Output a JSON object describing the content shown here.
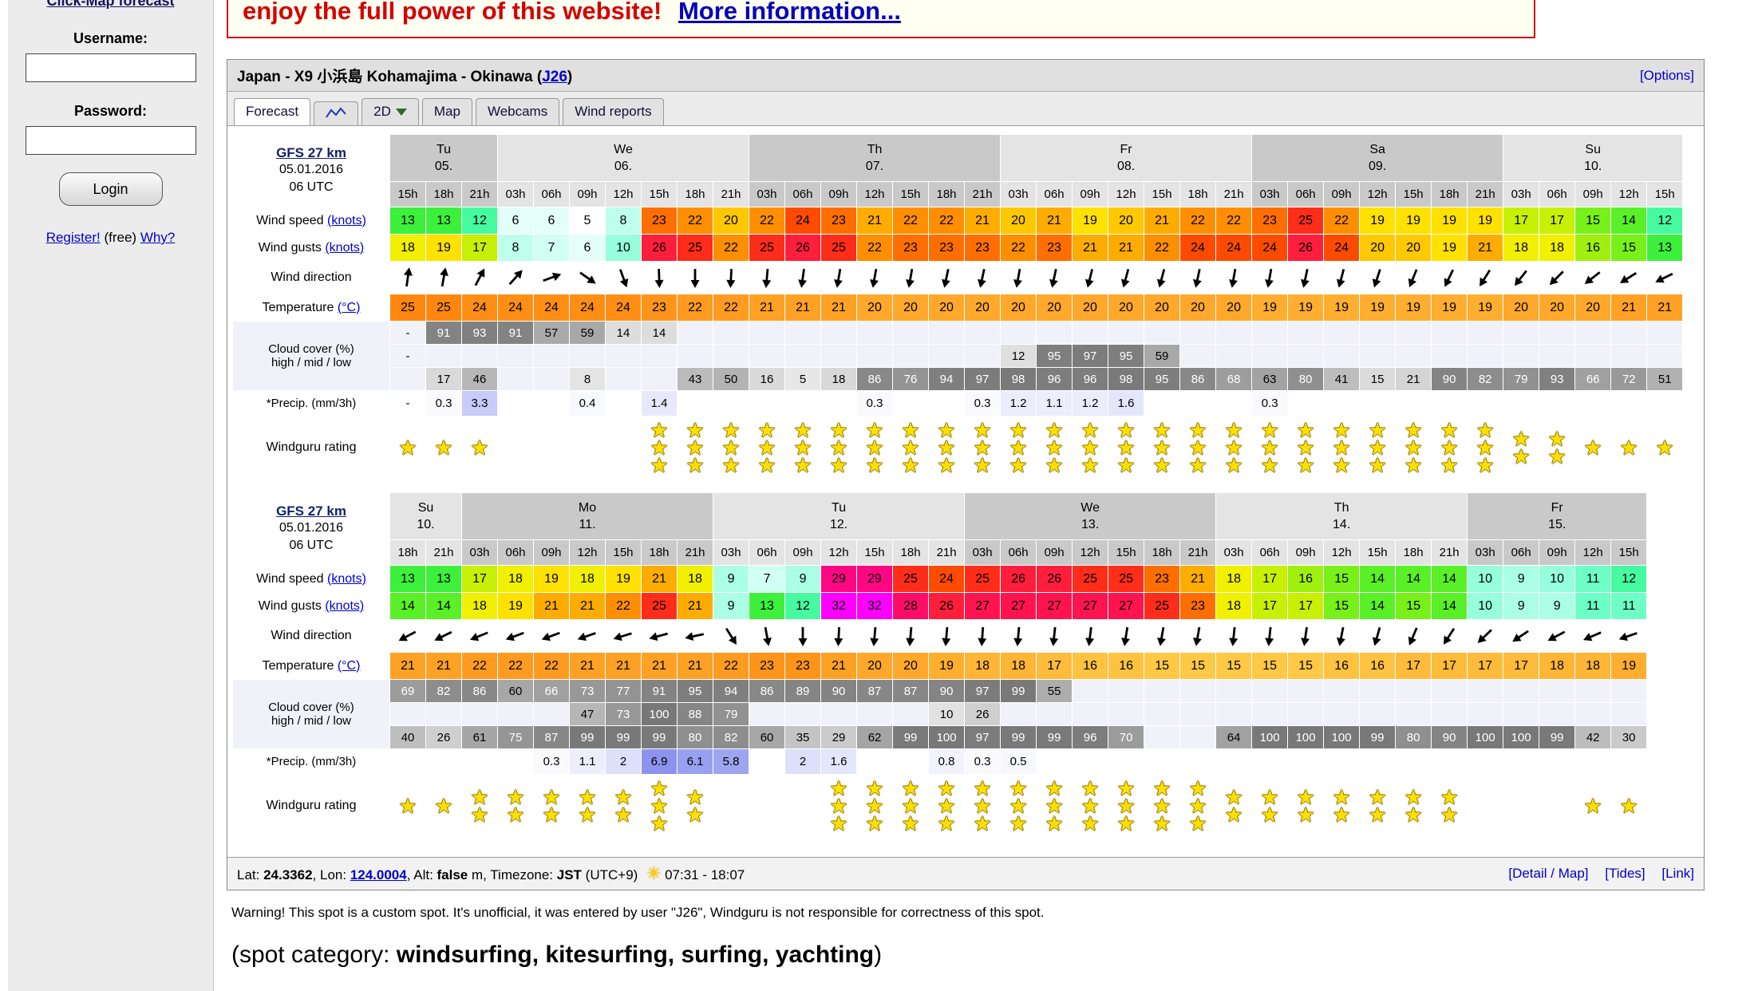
{
  "sidebar": {
    "clickmap_link": "Click-Map forecast",
    "username_label": "Username:",
    "password_label": "Password:",
    "login_button": "Login",
    "register_link": "Register!",
    "register_free": "(free)",
    "why_link": "Why?"
  },
  "banner": {
    "text": "enjoy the full power of this website!",
    "link": "More information..."
  },
  "header": {
    "title": "Japan - X9 小浜島 Kohamajima - Okinawa",
    "code_open": "(",
    "code": "J26",
    "code_close": ")",
    "options": "[Options]"
  },
  "tabs": {
    "forecast": "Forecast",
    "two_d": "2D",
    "map": "Map",
    "webcams": "Webcams",
    "wind_reports": "Wind reports"
  },
  "icons": {
    "sun": "☀",
    "star": "★"
  },
  "row_labels": {
    "wind_speed": "Wind speed",
    "wind_unit": "(knots)",
    "wind_gusts": "Wind gusts",
    "wind_direction": "Wind direction",
    "temperature": "Temperature",
    "temp_unit": "(°C)",
    "cloud_title": "Cloud cover (%)",
    "cloud_sub": "high / mid / low",
    "precip": "*Precip. (mm/3h)",
    "rating": "Windguru rating"
  },
  "forecast_tables": [
    {
      "model": "GFS 27 km",
      "run_date": "05.01.2016",
      "run_utc": "06 UTC",
      "day_groups": [
        {
          "name": "Tu",
          "date": "05.",
          "span": 3,
          "shaded": true
        },
        {
          "name": "We",
          "date": "06.",
          "span": 7,
          "shaded": false
        },
        {
          "name": "Th",
          "date": "07.",
          "span": 7,
          "shaded": true
        },
        {
          "name": "Fr",
          "date": "08.",
          "span": 7,
          "shaded": false
        },
        {
          "name": "Sa",
          "date": "09.",
          "span": 7,
          "shaded": true
        },
        {
          "name": "Su",
          "date": "10.",
          "span": 5,
          "shaded": false
        }
      ],
      "hours": [
        "15h",
        "18h",
        "21h",
        "03h",
        "06h",
        "09h",
        "12h",
        "15h",
        "18h",
        "21h",
        "03h",
        "06h",
        "09h",
        "12h",
        "15h",
        "18h",
        "21h",
        "03h",
        "06h",
        "09h",
        "12h",
        "15h",
        "18h",
        "21h",
        "03h",
        "06h",
        "09h",
        "12h",
        "15h",
        "18h",
        "21h",
        "03h",
        "06h",
        "09h",
        "12h",
        "15h"
      ],
      "wind_speed": [
        13,
        13,
        12,
        6,
        6,
        5,
        8,
        23,
        22,
        20,
        22,
        24,
        23,
        21,
        22,
        22,
        21,
        20,
        21,
        19,
        20,
        21,
        22,
        22,
        23,
        25,
        22,
        19,
        19,
        19,
        19,
        17,
        17,
        15,
        14,
        12
      ],
      "wind_gusts": [
        18,
        19,
        17,
        8,
        7,
        6,
        10,
        26,
        25,
        22,
        25,
        26,
        25,
        22,
        23,
        23,
        23,
        22,
        23,
        21,
        21,
        22,
        24,
        24,
        24,
        26,
        24,
        20,
        20,
        19,
        21,
        18,
        18,
        16,
        15,
        13
      ],
      "wind_dir_deg": [
        8,
        10,
        28,
        42,
        70,
        125,
        160,
        178,
        180,
        183,
        185,
        188,
        190,
        190,
        190,
        192,
        192,
        190,
        192,
        194,
        195,
        195,
        192,
        190,
        190,
        192,
        195,
        198,
        202,
        206,
        212,
        218,
        225,
        232,
        238,
        244
      ],
      "temperature": [
        25,
        25,
        24,
        24,
        24,
        24,
        24,
        23,
        22,
        22,
        21,
        21,
        21,
        20,
        20,
        20,
        20,
        20,
        20,
        20,
        20,
        20,
        20,
        20,
        19,
        19,
        19,
        19,
        19,
        19,
        19,
        20,
        20,
        20,
        21,
        21
      ],
      "cloud_high": [
        "-",
        91,
        93,
        91,
        57,
        59,
        14,
        14,
        null,
        null,
        null,
        null,
        null,
        null,
        null,
        null,
        null,
        null,
        null,
        null,
        null,
        null,
        null,
        null,
        null,
        null,
        null,
        null,
        null,
        null,
        null,
        null,
        null,
        null,
        null,
        null
      ],
      "cloud_mid": [
        "-",
        null,
        null,
        null,
        null,
        null,
        null,
        null,
        null,
        null,
        null,
        null,
        null,
        null,
        null,
        null,
        null,
        12,
        95,
        97,
        95,
        59,
        null,
        null,
        null,
        null,
        null,
        null,
        null,
        null,
        null,
        null,
        null,
        null,
        null,
        null
      ],
      "cloud_low": [
        null,
        17,
        46,
        null,
        null,
        8,
        null,
        null,
        43,
        50,
        16,
        5,
        18,
        86,
        76,
        94,
        97,
        98,
        96,
        96,
        98,
        95,
        86,
        68,
        63,
        80,
        41,
        15,
        21,
        90,
        82,
        79,
        93,
        66,
        72,
        51
      ],
      "precip": [
        "-",
        0.3,
        3.3,
        null,
        null,
        0.4,
        null,
        1.4,
        null,
        null,
        null,
        null,
        null,
        0.3,
        null,
        null,
        0.3,
        1.2,
        1.1,
        1.2,
        1.6,
        null,
        null,
        null,
        0.3,
        null,
        null,
        null,
        null,
        null,
        null,
        null,
        null,
        null,
        null,
        null
      ],
      "rating_stars": [
        1,
        1,
        1,
        0,
        0,
        0,
        0,
        3,
        3,
        3,
        3,
        3,
        3,
        3,
        3,
        3,
        3,
        3,
        3,
        3,
        3,
        3,
        3,
        3,
        3,
        3,
        3,
        3,
        3,
        3,
        3,
        2,
        2,
        1,
        1,
        1
      ]
    },
    {
      "model": "GFS 27 km",
      "run_date": "05.01.2016",
      "run_utc": "06 UTC",
      "day_groups": [
        {
          "name": "Su",
          "date": "10.",
          "span": 2,
          "shaded": false
        },
        {
          "name": "Mo",
          "date": "11.",
          "span": 7,
          "shaded": true
        },
        {
          "name": "Tu",
          "date": "12.",
          "span": 7,
          "shaded": false
        },
        {
          "name": "We",
          "date": "13.",
          "span": 7,
          "shaded": true
        },
        {
          "name": "Th",
          "date": "14.",
          "span": 7,
          "shaded": false
        },
        {
          "name": "Fr",
          "date": "15.",
          "span": 5,
          "shaded": true
        }
      ],
      "hours": [
        "18h",
        "21h",
        "03h",
        "06h",
        "09h",
        "12h",
        "15h",
        "18h",
        "21h",
        "03h",
        "06h",
        "09h",
        "12h",
        "15h",
        "18h",
        "21h",
        "03h",
        "06h",
        "09h",
        "12h",
        "15h",
        "18h",
        "21h",
        "03h",
        "06h",
        "09h",
        "12h",
        "15h",
        "18h",
        "21h",
        "03h",
        "06h",
        "09h",
        "12h",
        "15h"
      ],
      "wind_speed": [
        13,
        13,
        17,
        18,
        19,
        18,
        19,
        21,
        18,
        9,
        7,
        9,
        29,
        29,
        25,
        24,
        25,
        26,
        26,
        25,
        25,
        23,
        21,
        18,
        17,
        16,
        15,
        14,
        14,
        14,
        10,
        9,
        10,
        11,
        12
      ],
      "wind_gusts": [
        14,
        14,
        18,
        19,
        21,
        21,
        22,
        25,
        21,
        9,
        13,
        12,
        32,
        32,
        28,
        26,
        27,
        27,
        27,
        27,
        27,
        25,
        23,
        18,
        17,
        17,
        15,
        14,
        15,
        14,
        10,
        9,
        9,
        11,
        11
      ],
      "wind_dir_deg": [
        242,
        244,
        248,
        250,
        250,
        251,
        253,
        255,
        258,
        148,
        170,
        180,
        183,
        185,
        185,
        185,
        184,
        185,
        186,
        187,
        189,
        190,
        190,
        186,
        186,
        188,
        191,
        196,
        203,
        213,
        226,
        236,
        242,
        247,
        251
      ],
      "temperature": [
        21,
        21,
        22,
        22,
        22,
        21,
        21,
        21,
        21,
        22,
        23,
        23,
        21,
        20,
        20,
        19,
        18,
        18,
        17,
        16,
        16,
        15,
        15,
        15,
        15,
        15,
        16,
        16,
        17,
        17,
        17,
        17,
        18,
        18,
        19
      ],
      "cloud_high": [
        69,
        82,
        86,
        60,
        66,
        73,
        77,
        91,
        95,
        94,
        86,
        89,
        90,
        87,
        87,
        90,
        97,
        99,
        55,
        null,
        null,
        null,
        null,
        null,
        null,
        null,
        null,
        null,
        null,
        null,
        null,
        null,
        null,
        null,
        null
      ],
      "cloud_mid": [
        null,
        null,
        null,
        null,
        null,
        47,
        73,
        100,
        88,
        79,
        null,
        null,
        null,
        null,
        null,
        10,
        26,
        null,
        null,
        null,
        null,
        null,
        null,
        null,
        null,
        null,
        null,
        null,
        null,
        null,
        null,
        null,
        null,
        null,
        null
      ],
      "cloud_low": [
        40,
        26,
        61,
        75,
        87,
        99,
        99,
        99,
        80,
        82,
        60,
        35,
        29,
        62,
        99,
        100,
        97,
        99,
        99,
        96,
        70,
        null,
        null,
        64,
        100,
        100,
        100,
        99,
        80,
        90,
        100,
        100,
        99,
        42,
        30
      ],
      "precip": [
        null,
        null,
        null,
        null,
        0.3,
        1.1,
        2,
        6.9,
        6.1,
        5.8,
        null,
        2,
        1.6,
        null,
        null,
        0.8,
        0.3,
        0.5,
        null,
        null,
        null,
        null,
        null,
        null,
        null,
        null,
        null,
        null,
        null,
        null,
        null,
        null,
        null,
        null,
        null
      ],
      "rating_stars": [
        1,
        1,
        2,
        2,
        2,
        2,
        2,
        3,
        2,
        0,
        0,
        0,
        3,
        3,
        3,
        3,
        3,
        3,
        3,
        3,
        3,
        3,
        3,
        2,
        2,
        2,
        2,
        2,
        2,
        2,
        0,
        0,
        0,
        1,
        1
      ]
    }
  ],
  "footer": {
    "lat_label": "Lat: ",
    "lat": "24.3362",
    "lon_label": ", Lon: ",
    "lon": "124.0004",
    "alt_label": ", Alt: ",
    "alt": "false",
    "alt_unit": " m",
    "tz_label": ", Timezone: ",
    "tz": "JST",
    "tz_offset": " (UTC+9)",
    "sun_times": "07:31 - 18:07",
    "detail_link": "[Detail / Map]",
    "tides_link": "[Tides]",
    "link_link": "[Link]"
  },
  "warning": "Warning! This spot is a custom spot. It's unofficial, it was entered by user \"J26\", Windguru is not responsible for correctness of this spot.",
  "spot_category": {
    "prefix": "(spot category: ",
    "categories": "windsurfing, kitesurfing, surfing, yachting",
    "suffix": ")"
  }
}
